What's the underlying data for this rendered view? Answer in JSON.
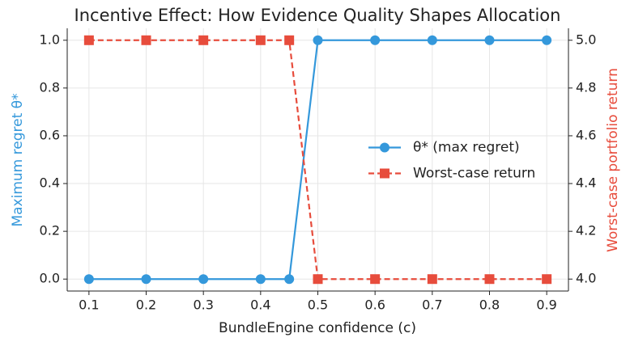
{
  "chart_data": {
    "type": "line",
    "title": "Incentive Effect: How Evidence Quality Shapes Allocation",
    "x_label": "BundleEngine confidence (c)",
    "y_label": "Maximum regret θ*",
    "y2_label": "Worst-case portfolio return",
    "x": [
      0.1,
      0.2,
      0.3,
      0.4,
      0.45,
      0.5,
      0.6,
      0.7,
      0.8,
      0.9
    ],
    "series": [
      {
        "name": "θ* (max regret)",
        "color": "#3498db",
        "marker": "circle",
        "dashed": false,
        "values": [
          0,
          0,
          0,
          0,
          0,
          1,
          1,
          1,
          1,
          1
        ]
      },
      {
        "name": "Worst-case return",
        "color": "#e74c3c",
        "marker": "square",
        "dashed": true,
        "axis": "y2",
        "values": [
          5,
          5,
          5,
          5,
          5,
          4,
          4,
          4,
          4,
          4
        ]
      }
    ],
    "xlim": [
      0.062,
      0.938
    ],
    "xticks": [
      0.1,
      0.2,
      0.3,
      0.4,
      0.5,
      0.6,
      0.7,
      0.8,
      0.9
    ],
    "ylim": [
      -0.05,
      1.05
    ],
    "yticks": [
      {
        "value": 0,
        "label": "0.0"
      },
      0.2,
      0.4,
      0.6,
      0.8,
      {
        "value": 1,
        "label": "1.0"
      }
    ],
    "y2lim": [
      3.95,
      5.05
    ],
    "y2ticks": [
      {
        "value": 4,
        "label": "4.0"
      },
      4.2,
      4.4,
      4.6,
      4.8,
      {
        "value": 5,
        "label": "5.0"
      }
    ],
    "grid": true,
    "legend": "center right"
  }
}
